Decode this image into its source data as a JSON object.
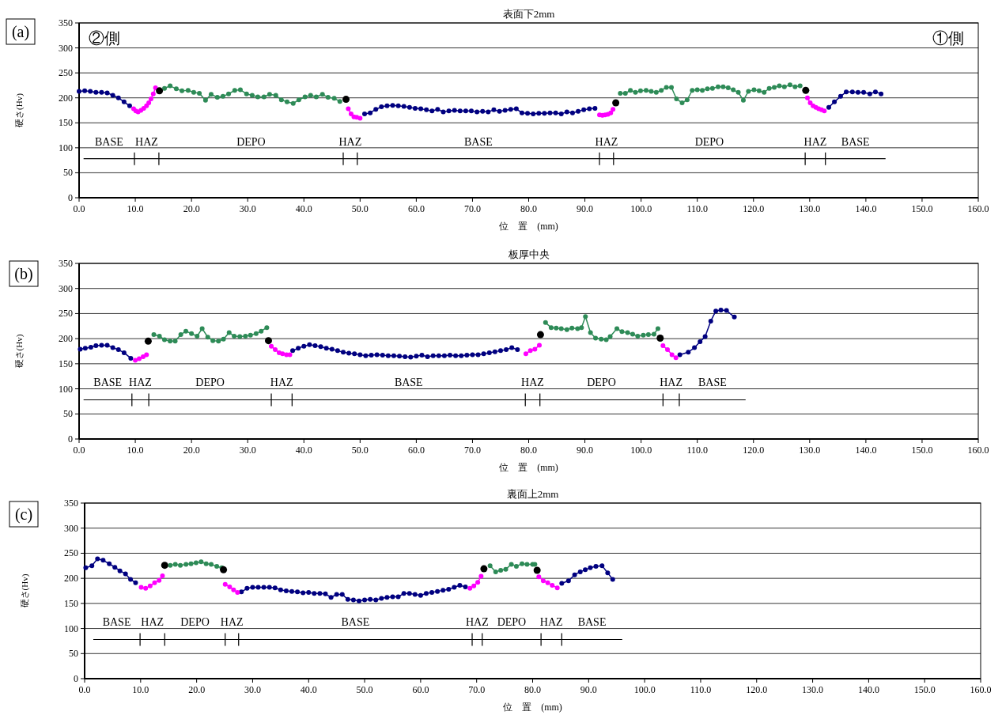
{
  "chart_data": [
    {
      "type": "line",
      "title": "表面下2mm",
      "xlabel": "位　置　(mm)",
      "ylabel": "硬さ(Hv)",
      "grid": "y",
      "marker": "circle",
      "xlim": [
        0,
        160
      ],
      "ylim": [
        0,
        350
      ],
      "yticks": [
        0,
        50,
        100,
        150,
        200,
        250,
        300,
        350
      ],
      "xticks": [
        {
          "value": 0,
          "label": "0.0"
        },
        {
          "value": 10,
          "label": "10.0"
        },
        {
          "value": 20,
          "label": "20.0"
        },
        {
          "value": 30,
          "label": "30.0"
        },
        {
          "value": 40,
          "label": "40.0"
        },
        {
          "value": 50,
          "label": "50.0"
        },
        {
          "value": 60,
          "label": "60.0"
        },
        {
          "value": 70,
          "label": "70.0"
        },
        {
          "value": 80,
          "label": "80.0"
        },
        {
          "value": 90,
          "label": "90.0"
        },
        {
          "value": 100,
          "label": "100.0"
        },
        {
          "value": 110,
          "label": "110.0"
        },
        {
          "value": 120,
          "label": "120.0"
        },
        {
          "value": 130,
          "label": "130.0"
        },
        {
          "value": 140,
          "label": "140.0"
        },
        {
          "value": 150,
          "label": "150.0"
        },
        {
          "value": 160,
          "label": "160.0"
        }
      ],
      "annotations": [
        "(a)",
        "②側",
        "①側",
        "BASE",
        "HAZ",
        "DEPO",
        "HAZ",
        "BASE",
        "HAZ",
        "DEPO",
        "HAZ",
        "BASE"
      ],
      "series": [
        {
          "color": "#000080",
          "x": [
            0,
            1,
            2,
            3,
            4,
            5,
            6,
            7,
            8,
            9,
            null,
            50.8,
            51.8,
            52.8,
            53.8,
            54.8,
            55.8,
            56.8,
            57.8,
            58.8,
            59.8,
            60.8,
            61.8,
            62.8,
            63.8,
            64.8,
            65.8,
            66.8,
            67.8,
            68.8,
            69.8,
            70.8,
            71.8,
            72.8,
            73.8,
            74.8,
            75.8,
            76.8,
            77.8,
            78.8,
            79.8,
            80.8,
            81.8,
            82.8,
            83.8,
            84.8,
            85.8,
            86.8,
            87.8,
            88.8,
            89.8,
            90.8,
            91.8,
            null,
            133.4,
            134.4,
            135.5,
            136.5,
            137.6,
            138.6,
            139.6,
            140.7,
            141.7,
            142.7
          ],
          "values": [
            213,
            214,
            213,
            211,
            211,
            210,
            205,
            200,
            192,
            184,
            null,
            168,
            170,
            177,
            182,
            184,
            185,
            184,
            183,
            181,
            179,
            178,
            176,
            174,
            177,
            172,
            174,
            175,
            174,
            174,
            174,
            172,
            173,
            172,
            176,
            173,
            175,
            177,
            178,
            170,
            169,
            168,
            169,
            169,
            170,
            170,
            168,
            172,
            170,
            173,
            176,
            178,
            179,
            null,
            181,
            192,
            203,
            212,
            212,
            211,
            211,
            208,
            212,
            208
          ]
        },
        {
          "color": "#ff00ff",
          "x": [
            9.7,
            10.1,
            10.5,
            11,
            11.5,
            12,
            12.4,
            12.8,
            13.2,
            13.6,
            null,
            47.9,
            48.4,
            48.9,
            49.4,
            50.0,
            null,
            92.6,
            93.1,
            93.6,
            94.1,
            94.6,
            95.0,
            null,
            129.6,
            130.1,
            130.6,
            131.1,
            131.6,
            132.1,
            132.6
          ],
          "values": [
            178,
            174,
            172,
            175,
            179,
            184,
            190,
            198,
            208,
            220,
            null,
            178,
            168,
            162,
            161,
            159,
            null,
            166,
            165,
            166,
            167,
            170,
            177,
            null,
            200,
            190,
            184,
            181,
            178,
            176,
            174
          ]
        },
        {
          "color": "#2e8b57",
          "x": [
            15.2,
            16.2,
            17.3,
            18.3,
            19.4,
            20.4,
            21.4,
            22.5,
            23.5,
            24.6,
            25.6,
            26.6,
            27.7,
            28.7,
            29.8,
            30.8,
            31.8,
            32.9,
            33.9,
            35.0,
            36.0,
            37.0,
            38.1,
            39.1,
            40.2,
            41.2,
            42.2,
            43.3,
            44.3,
            45.4,
            46.4,
            null,
            96.3,
            97.2,
            98.1,
            99.0,
            99.9,
            100.9,
            101.8,
            102.7,
            103.6,
            104.5,
            105.4,
            106.3,
            107.3,
            108.2,
            109.1,
            110.0,
            110.9,
            111.8,
            112.7,
            113.7,
            114.6,
            115.5,
            116.4,
            117.3,
            118.2,
            119.1,
            120.1,
            121.0,
            121.9,
            122.8,
            123.7,
            124.6,
            125.5,
            126.5,
            127.4,
            128.3
          ],
          "values": [
            219,
            224,
            218,
            214,
            215,
            211,
            209,
            195,
            207,
            201,
            203,
            208,
            215,
            216,
            208,
            205,
            202,
            202,
            207,
            205,
            196,
            192,
            189,
            196,
            202,
            205,
            202,
            207,
            201,
            199,
            193,
            null,
            209,
            209,
            215,
            211,
            214,
            215,
            213,
            211,
            215,
            221,
            221,
            198,
            190,
            196,
            215,
            216,
            215,
            218,
            219,
            222,
            222,
            220,
            216,
            211,
            195,
            213,
            216,
            214,
            211,
            219,
            221,
            224,
            222,
            226,
            222,
            224
          ]
        },
        {
          "type": "scatter",
          "color": "#000000",
          "x": [
            14.3,
            47.5,
            95.5,
            129.3
          ],
          "values": [
            214,
            197,
            190,
            215
          ]
        }
      ]
    },
    {
      "type": "line",
      "title": "板厚中央",
      "xlabel": "位　置　(mm)",
      "ylabel": "硬さ(Hv)",
      "grid": "y",
      "marker": "circle",
      "xlim": [
        0,
        160
      ],
      "ylim": [
        0,
        350
      ],
      "yticks": [
        0,
        50,
        100,
        150,
        200,
        250,
        300,
        350
      ],
      "xticks": [
        {
          "value": 0,
          "label": "0.0"
        },
        {
          "value": 10,
          "label": "10.0"
        },
        {
          "value": 20,
          "label": "20.0"
        },
        {
          "value": 30,
          "label": "30.0"
        },
        {
          "value": 40,
          "label": "40.0"
        },
        {
          "value": 50,
          "label": "50.0"
        },
        {
          "value": 60,
          "label": "60.0"
        },
        {
          "value": 70,
          "label": "70.0"
        },
        {
          "value": 80,
          "label": "80.0"
        },
        {
          "value": 90,
          "label": "90.0"
        },
        {
          "value": 100,
          "label": "100.0"
        },
        {
          "value": 110,
          "label": "110.0"
        },
        {
          "value": 120,
          "label": "120.0"
        },
        {
          "value": 130,
          "label": "130.0"
        },
        {
          "value": 140,
          "label": "140.0"
        },
        {
          "value": 150,
          "label": "150.0"
        },
        {
          "value": 160,
          "label": "160.0"
        }
      ],
      "annotations": [
        "(b)",
        "BASE",
        "HAZ",
        "DEPO",
        "HAZ",
        "BASE",
        "HAZ",
        "DEPO",
        "HAZ",
        "BASE"
      ],
      "series": [
        {
          "color": "#000080",
          "x": [
            0.2,
            1.1,
            2.1,
            3.0,
            4.0,
            5.0,
            6.0,
            7.0,
            8.0,
            9.2,
            null,
            38,
            39,
            40,
            41,
            42,
            43,
            44,
            45,
            46,
            47,
            48,
            49,
            50,
            51,
            52,
            53,
            54,
            55,
            56,
            57,
            58,
            59,
            60,
            61,
            62,
            63,
            64,
            65,
            66,
            67,
            68,
            69,
            70,
            71,
            72,
            73,
            74,
            75,
            76,
            77,
            78,
            null,
            106.9,
            108.4,
            109.5,
            110.5,
            111.4,
            112.4,
            113.3,
            114.2,
            115.2,
            116.6
          ],
          "values": [
            179,
            181,
            183,
            186,
            187,
            187,
            182,
            178,
            172,
            161,
            null,
            176,
            181,
            185,
            188,
            186,
            184,
            181,
            179,
            176,
            173,
            171,
            170,
            168,
            166,
            167,
            168,
            167,
            166,
            166,
            165,
            164,
            163,
            165,
            167,
            164,
            166,
            166,
            166,
            167,
            166,
            166,
            167,
            168,
            168,
            170,
            172,
            174,
            176,
            178,
            182,
            178,
            null,
            168,
            173,
            182,
            194,
            204,
            235,
            255,
            257,
            256,
            243
          ]
        },
        {
          "color": "#ff00ff",
          "x": [
            10.0,
            10.7,
            11.4,
            12.0,
            null,
            34.2,
            34.9,
            35.6,
            36.2,
            36.9,
            37.5,
            null,
            79.5,
            80.3,
            81.1,
            81.9,
            null,
            103.9,
            104.7,
            105.5,
            106.2
          ],
          "values": [
            157,
            160,
            164,
            168,
            null,
            185,
            178,
            172,
            170,
            168,
            168,
            null,
            170,
            176,
            179,
            187,
            null,
            186,
            178,
            168,
            162
          ]
        },
        {
          "color": "#2e8b57",
          "x": [
            13.3,
            14.3,
            15.2,
            16.2,
            17.1,
            18.1,
            19.0,
            20.0,
            21.0,
            21.9,
            22.9,
            23.8,
            24.8,
            25.7,
            26.7,
            27.6,
            28.6,
            29.6,
            30.5,
            31.5,
            32.4,
            33.4,
            null,
            83.0,
            84.0,
            84.9,
            85.8,
            86.8,
            87.7,
            88.7,
            89.4,
            90.1,
            91.0,
            91.9,
            92.9,
            93.8,
            94.5,
            95.7,
            96.6,
            97.6,
            98.5,
            99.4,
            100.4,
            101.3,
            102.3,
            103.0
          ],
          "values": [
            208,
            205,
            198,
            195,
            195,
            208,
            215,
            210,
            205,
            220,
            203,
            196,
            195,
            199,
            212,
            205,
            204,
            205,
            207,
            210,
            215,
            222,
            null,
            232,
            222,
            221,
            220,
            218,
            221,
            220,
            222,
            244,
            212,
            201,
            199,
            198,
            204,
            220,
            214,
            212,
            209,
            205,
            207,
            208,
            209,
            220
          ]
        },
        {
          "type": "scatter",
          "color": "#000000",
          "x": [
            12.3,
            33.7,
            82.1,
            103.4
          ],
          "values": [
            195,
            196,
            208,
            201
          ]
        }
      ]
    },
    {
      "type": "line",
      "title": "裏面上2mm",
      "xlabel": "位　置　(mm)",
      "ylabel": "硬さ(Hv)",
      "grid": "y",
      "marker": "circle",
      "xlim": [
        0,
        160
      ],
      "ylim": [
        0,
        350
      ],
      "yticks": [
        0,
        50,
        100,
        150,
        200,
        250,
        300,
        350
      ],
      "xticks": [
        {
          "value": 0,
          "label": "0.0"
        },
        {
          "value": 10,
          "label": "10.0"
        },
        {
          "value": 20,
          "label": "20.0"
        },
        {
          "value": 30,
          "label": "30.0"
        },
        {
          "value": 40,
          "label": "40.0"
        },
        {
          "value": 50,
          "label": "50.0"
        },
        {
          "value": 60,
          "label": "60.0"
        },
        {
          "value": 70,
          "label": "70.0"
        },
        {
          "value": 80,
          "label": "80.0"
        },
        {
          "value": 90,
          "label": "90.0"
        },
        {
          "value": 100,
          "label": "100.0"
        },
        {
          "value": 110,
          "label": "110.0"
        },
        {
          "value": 120,
          "label": "120.0"
        },
        {
          "value": 130,
          "label": "130.0"
        },
        {
          "value": 140,
          "label": "140.0"
        },
        {
          "value": 150,
          "label": "150.0"
        },
        {
          "value": 160,
          "label": "160.0"
        }
      ],
      "annotations": [
        "(c)",
        "BASE",
        "HAZ",
        "DEPO",
        "HAZ",
        "BASE",
        "HAZ",
        "DEPO",
        "HAZ",
        "BASE"
      ],
      "series": [
        {
          "color": "#000080",
          "x": [
            0.2,
            1.3,
            2.3,
            3.3,
            4.4,
            5.4,
            6.3,
            7.3,
            8.2,
            9.1,
            null,
            28,
            29,
            30,
            31,
            32,
            33,
            34,
            35,
            36,
            37,
            38,
            39,
            40,
            41,
            42,
            43,
            44,
            45,
            46,
            47,
            48,
            49,
            50,
            51,
            52,
            53,
            54,
            55,
            56,
            57,
            58,
            59,
            60,
            61,
            62,
            63,
            64,
            65,
            66,
            67,
            68,
            null,
            85.2,
            86.4,
            87.5,
            88.5,
            89.4,
            90.3,
            91.3,
            92.4,
            93.4,
            94.3
          ],
          "values": [
            221,
            225,
            239,
            236,
            229,
            222,
            215,
            209,
            198,
            191,
            null,
            173,
            180,
            182,
            182,
            182,
            182,
            181,
            177,
            175,
            174,
            173,
            171,
            172,
            170,
            170,
            169,
            162,
            168,
            168,
            158,
            157,
            155,
            157,
            158,
            157,
            160,
            162,
            163,
            163,
            170,
            170,
            168,
            166,
            170,
            172,
            174,
            176,
            178,
            182,
            186,
            183,
            null,
            190,
            195,
            207,
            213,
            217,
            221,
            224,
            225,
            211,
            198
          ]
        },
        {
          "color": "#ff00ff",
          "x": [
            10.1,
            10.9,
            11.7,
            12.5,
            13.3,
            13.9,
            null,
            25.1,
            25.9,
            26.6,
            27.3,
            null,
            68.8,
            69.5,
            70.2,
            70.8,
            null,
            81.1,
            81.9,
            82.7,
            83.5,
            84.4
          ],
          "values": [
            182,
            180,
            185,
            191,
            196,
            205,
            null,
            188,
            183,
            177,
            172,
            null,
            180,
            185,
            192,
            204,
            null,
            203,
            195,
            191,
            186,
            181
          ]
        },
        {
          "color": "#2e8b57",
          "x": [
            15.3,
            16.2,
            17.1,
            18.1,
            19.0,
            19.9,
            20.8,
            21.7,
            22.6,
            23.6,
            24.5,
            null,
            72.4,
            73.4,
            74.3,
            75.2,
            76.2,
            77.1,
            78.1,
            79.0,
            80.0,
            80.4
          ],
          "values": [
            226,
            228,
            226,
            228,
            229,
            231,
            233,
            229,
            228,
            224,
            221,
            null,
            225,
            213,
            216,
            218,
            228,
            224,
            229,
            228,
            228,
            228
          ]
        },
        {
          "type": "scatter",
          "color": "#000000",
          "x": [
            14.3,
            24.8,
            71.3,
            80.8
          ],
          "values": [
            226,
            217,
            219,
            216
          ]
        }
      ]
    }
  ]
}
